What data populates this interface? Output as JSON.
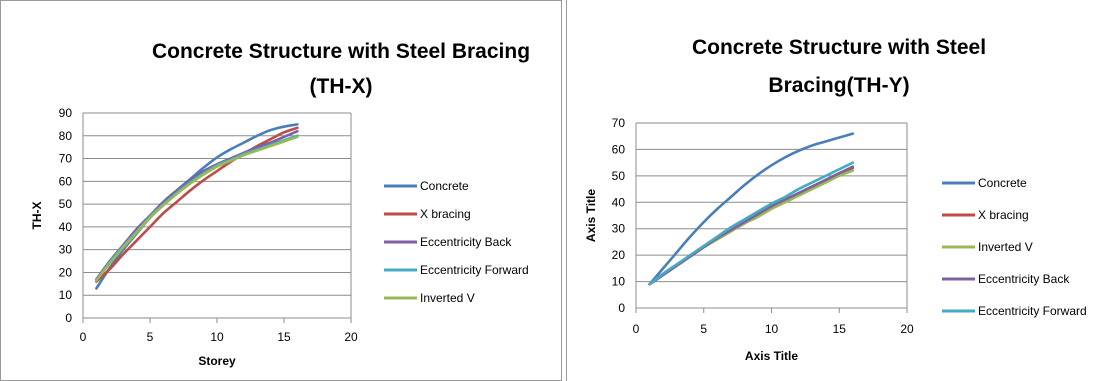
{
  "chart_data": [
    {
      "type": "line",
      "title_lines": [
        "Concrete Structure with Steel Bracing",
        "(TH-X)"
      ],
      "xlabel": "Storey",
      "ylabel": "TH-X",
      "xlim": [
        0,
        20
      ],
      "ylim": [
        0,
        90
      ],
      "xticks": [
        0,
        5,
        10,
        15,
        20
      ],
      "yticks": [
        0,
        10,
        20,
        30,
        40,
        50,
        60,
        70,
        80,
        90
      ],
      "grid": true,
      "legend_position": "right",
      "x": [
        1,
        2,
        3,
        4,
        5,
        6,
        7,
        8,
        9,
        10,
        11,
        12,
        13,
        14,
        15,
        16
      ],
      "series": [
        {
          "name": "Concrete",
          "color": "#4a7ebb",
          "values": [
            13,
            22,
            30,
            37,
            44,
            50,
            56,
            61,
            66,
            70.5,
            74,
            77,
            80,
            82.5,
            84,
            85
          ]
        },
        {
          "name": "X bracing",
          "color": "#be4b48",
          "values": [
            16,
            21.5,
            28,
            34,
            40,
            46,
            51,
            56,
            60.5,
            64.5,
            68.5,
            72,
            75.5,
            78.5,
            81.5,
            83.5
          ]
        },
        {
          "name": "Eccentricity Back",
          "color": "#7d60a0",
          "values": [
            17,
            25,
            32,
            39,
            45,
            51,
            56,
            60.5,
            64.5,
            67.5,
            70,
            72.5,
            75,
            77,
            79.5,
            82
          ]
        },
        {
          "name": "Eccentricity Forward",
          "color": "#46aac5",
          "values": [
            16.5,
            24.5,
            31.5,
            38,
            44.5,
            50,
            55,
            59.5,
            63.5,
            67,
            69.5,
            72,
            74,
            76,
            78,
            80
          ]
        },
        {
          "name": "Inverted V",
          "color": "#98b954",
          "values": [
            16.5,
            24,
            31,
            37.5,
            44,
            49.5,
            54.5,
            59,
            63,
            66.5,
            69,
            71.5,
            73.5,
            75.5,
            77.5,
            79.5
          ]
        }
      ]
    },
    {
      "type": "line",
      "title_lines": [
        "Concrete Structure with Steel",
        "Bracing(TH-Y)"
      ],
      "xlabel": "Axis Title",
      "ylabel": "Axis Title",
      "xlim": [
        0,
        20
      ],
      "ylim": [
        0,
        70
      ],
      "xticks": [
        0,
        5,
        10,
        15,
        20
      ],
      "yticks": [
        0,
        10,
        20,
        30,
        40,
        50,
        60,
        70
      ],
      "grid": true,
      "legend_position": "right",
      "x": [
        1,
        2,
        3,
        4,
        5,
        6,
        7,
        8,
        9,
        10,
        11,
        12,
        13,
        14,
        15,
        16
      ],
      "series": [
        {
          "name": "Concrete",
          "color": "#4a7ebb",
          "values": [
            9,
            15,
            21,
            27,
            32.5,
            37.5,
            42,
            46.5,
            50.5,
            54,
            57,
            59.5,
            61.5,
            63,
            64.5,
            66
          ]
        },
        {
          "name": "X bracing",
          "color": "#be4b48",
          "values": [
            9,
            12.5,
            16,
            19.5,
            23,
            26,
            29,
            32,
            35,
            38,
            40.5,
            43,
            45.5,
            48,
            50.5,
            53
          ]
        },
        {
          "name": "Inverted V",
          "color": "#98b954",
          "values": [
            9,
            12.5,
            16,
            19.5,
            23,
            26,
            29,
            32,
            34.5,
            37.5,
            40,
            42.5,
            45,
            47.5,
            50,
            52
          ]
        },
        {
          "name": "Eccentricity Back",
          "color": "#7d60a0",
          "values": [
            9,
            12.5,
            16,
            19.5,
            23,
            26.5,
            29.5,
            32.5,
            35.5,
            38.5,
            41,
            43.5,
            46,
            48.5,
            51,
            53.5
          ]
        },
        {
          "name": "Eccentricity Forward",
          "color": "#46aac5",
          "values": [
            9,
            13,
            16.5,
            20,
            23.5,
            27,
            30.5,
            33.5,
            36.5,
            39.5,
            42,
            45,
            47.5,
            50,
            52.5,
            55
          ]
        }
      ]
    }
  ]
}
